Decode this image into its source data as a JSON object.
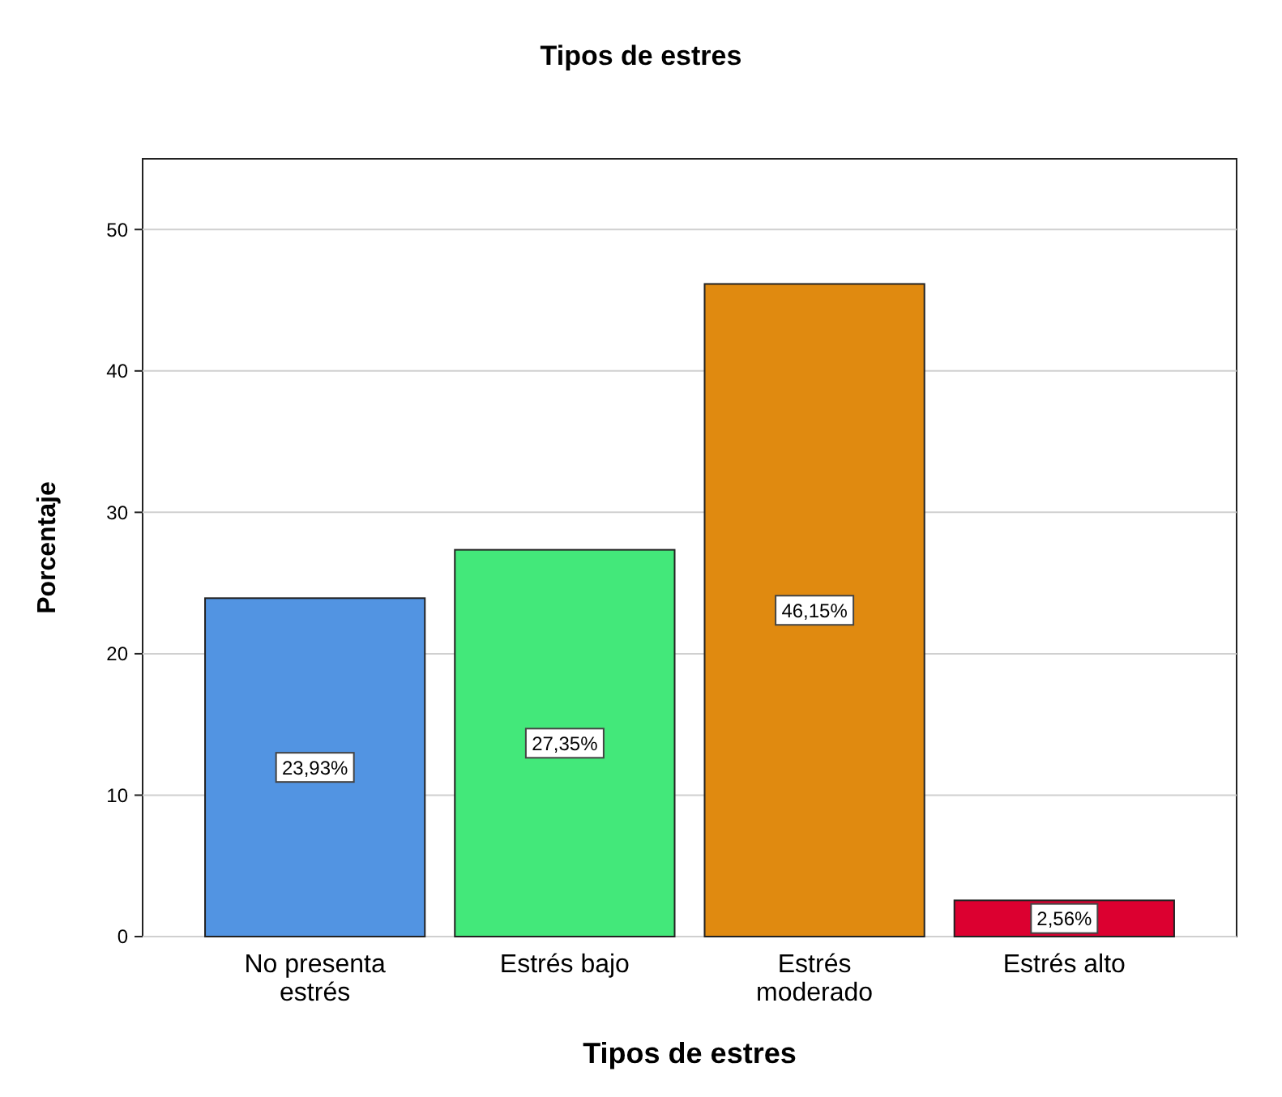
{
  "chart_data": {
    "type": "bar",
    "title": "Tipos de estres",
    "xlabel": "Tipos de estres",
    "ylabel": "Porcentaje",
    "categories": [
      "No presenta estrés",
      "Estrés bajo",
      "Estrés moderado",
      "Estrés alto"
    ],
    "values": [
      23.93,
      27.35,
      46.15,
      2.56
    ],
    "colors": [
      "#5294e2",
      "#43e87a",
      "#e08a10",
      "#dc0030"
    ],
    "value_labels": [
      "23,93%",
      "27,35%",
      "46,15%",
      "2,56%"
    ],
    "ylim": [
      0,
      55
    ],
    "yticks": [
      0,
      10,
      20,
      30,
      40,
      50
    ],
    "grid": "y"
  }
}
